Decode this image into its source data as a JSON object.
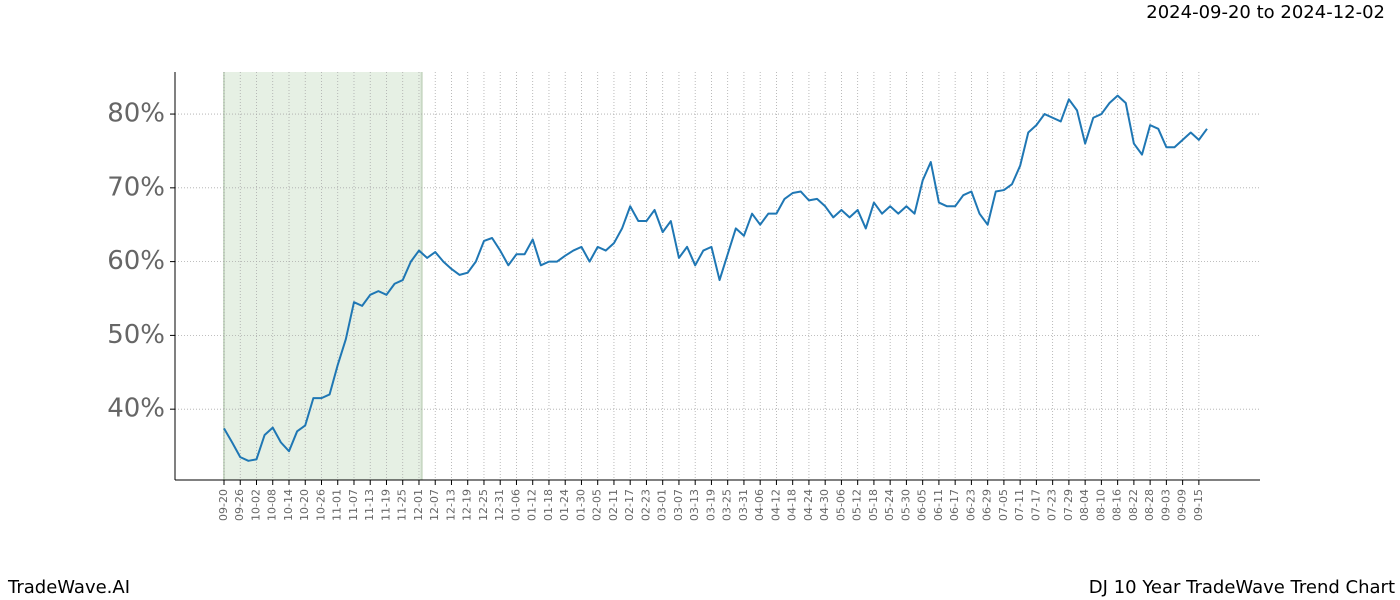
{
  "chart_data": {
    "type": "line",
    "title": "DJ 10 Year TradeWave Trend Chart",
    "subtitle": "2024-09-20 to 2024-12-02",
    "source": "TradeWave.AI",
    "shaded_range": [
      "09-20",
      "12-02"
    ],
    "shade_color": "#e6f0e4",
    "grid": true,
    "ylim": [
      30.4,
      85.7
    ],
    "yticks": [
      {
        "value": 40,
        "label": "40%"
      },
      {
        "value": 50,
        "label": "50%"
      },
      {
        "value": 60,
        "label": "60%"
      },
      {
        "value": 70,
        "label": "70%"
      },
      {
        "value": 80,
        "label": "80%"
      }
    ],
    "xticks": [
      "09-20",
      "09-26",
      "10-02",
      "10-08",
      "10-14",
      "10-20",
      "10-26",
      "11-01",
      "11-07",
      "11-13",
      "11-19",
      "11-25",
      "12-01",
      "12-07",
      "12-13",
      "12-19",
      "12-25",
      "12-31",
      "01-06",
      "01-12",
      "01-18",
      "01-24",
      "01-30",
      "02-05",
      "02-11",
      "02-17",
      "02-23",
      "03-01",
      "03-07",
      "03-13",
      "03-19",
      "03-25",
      "03-31",
      "04-06",
      "04-12",
      "04-18",
      "04-24",
      "04-30",
      "05-06",
      "05-12",
      "05-18",
      "05-24",
      "05-30",
      "06-05",
      "06-11",
      "06-17",
      "06-23",
      "06-29",
      "07-05",
      "07-11",
      "07-17",
      "07-23",
      "07-29",
      "08-04",
      "08-10",
      "08-16",
      "08-22",
      "08-28",
      "09-03",
      "09-09",
      "09-15"
    ],
    "x": [
      "09-20",
      "09-23",
      "09-26",
      "09-29",
      "10-02",
      "10-05",
      "10-08",
      "10-11",
      "10-14",
      "10-17",
      "10-20",
      "10-23",
      "10-26",
      "10-29",
      "11-01",
      "11-04",
      "11-07",
      "11-10",
      "11-13",
      "11-16",
      "11-19",
      "11-22",
      "11-25",
      "11-28",
      "12-01",
      "12-04",
      "12-07",
      "12-10",
      "12-13",
      "12-16",
      "12-19",
      "12-22",
      "12-25",
      "12-28",
      "12-31",
      "01-03",
      "01-06",
      "01-09",
      "01-12",
      "01-15",
      "01-18",
      "01-21",
      "01-24",
      "01-27",
      "01-30",
      "02-02",
      "02-05",
      "02-08",
      "02-11",
      "02-14",
      "02-17",
      "02-20",
      "02-23",
      "02-26",
      "03-01",
      "03-04",
      "03-07",
      "03-10",
      "03-13",
      "03-16",
      "03-19",
      "03-22",
      "03-25",
      "03-28",
      "03-31",
      "04-03",
      "04-06",
      "04-09",
      "04-12",
      "04-15",
      "04-18",
      "04-21",
      "04-24",
      "04-27",
      "04-30",
      "05-03",
      "05-06",
      "05-09",
      "05-12",
      "05-15",
      "05-18",
      "05-21",
      "05-24",
      "05-27",
      "05-30",
      "06-02",
      "06-05",
      "06-08",
      "06-11",
      "06-14",
      "06-17",
      "06-20",
      "06-23",
      "06-26",
      "06-29",
      "07-02",
      "07-05",
      "07-08",
      "07-11",
      "07-14",
      "07-17",
      "07-20",
      "07-23",
      "07-26",
      "07-29",
      "08-01",
      "08-04",
      "08-07",
      "08-10",
      "08-13",
      "08-16",
      "08-19",
      "08-22",
      "08-25",
      "08-28",
      "08-31",
      "09-03",
      "09-06",
      "09-09",
      "09-12",
      "09-15",
      "09-18"
    ],
    "series": [
      {
        "color": "#1f77b4",
        "values": [
          37.4,
          35.5,
          33.5,
          33.0,
          33.2,
          36.5,
          37.5,
          35.5,
          34.3,
          37.0,
          37.8,
          41.5,
          41.5,
          42.0,
          46.0,
          49.5,
          54.5,
          54.0,
          55.5,
          56.0,
          55.5,
          57.0,
          57.5,
          60.0,
          61.5,
          60.5,
          61.3,
          60.0,
          59.0,
          58.2,
          58.5,
          60.0,
          62.8,
          63.2,
          61.5,
          59.5,
          61.0,
          61.0,
          63.0,
          59.5,
          60.0,
          60.0,
          60.8,
          61.5,
          62.0,
          60.0,
          62.0,
          61.5,
          62.5,
          64.5,
          67.5,
          65.5,
          65.5,
          67.0,
          64.0,
          65.5,
          60.5,
          62.0,
          59.5,
          61.5,
          62.0,
          57.5,
          61.0,
          64.5,
          63.5,
          66.5,
          65.0,
          66.5,
          66.5,
          68.5,
          69.3,
          69.5,
          68.3,
          68.5,
          67.5,
          66.0,
          67.0,
          66.0,
          67.0,
          64.5,
          68.0,
          66.5,
          67.5,
          66.5,
          67.5,
          66.5,
          71.0,
          73.5,
          68.0,
          67.5,
          67.5,
          69.0,
          69.5,
          66.5,
          65.0,
          69.5,
          69.7,
          70.5,
          73.0,
          77.5,
          78.5,
          80.0,
          79.5,
          79.0,
          82.0,
          80.5,
          76.0,
          79.5,
          80.0,
          81.5,
          82.5,
          81.5,
          76.0,
          74.5,
          78.5,
          78.0,
          75.5,
          75.5,
          76.5,
          77.5,
          76.5,
          78.0
        ]
      }
    ]
  }
}
